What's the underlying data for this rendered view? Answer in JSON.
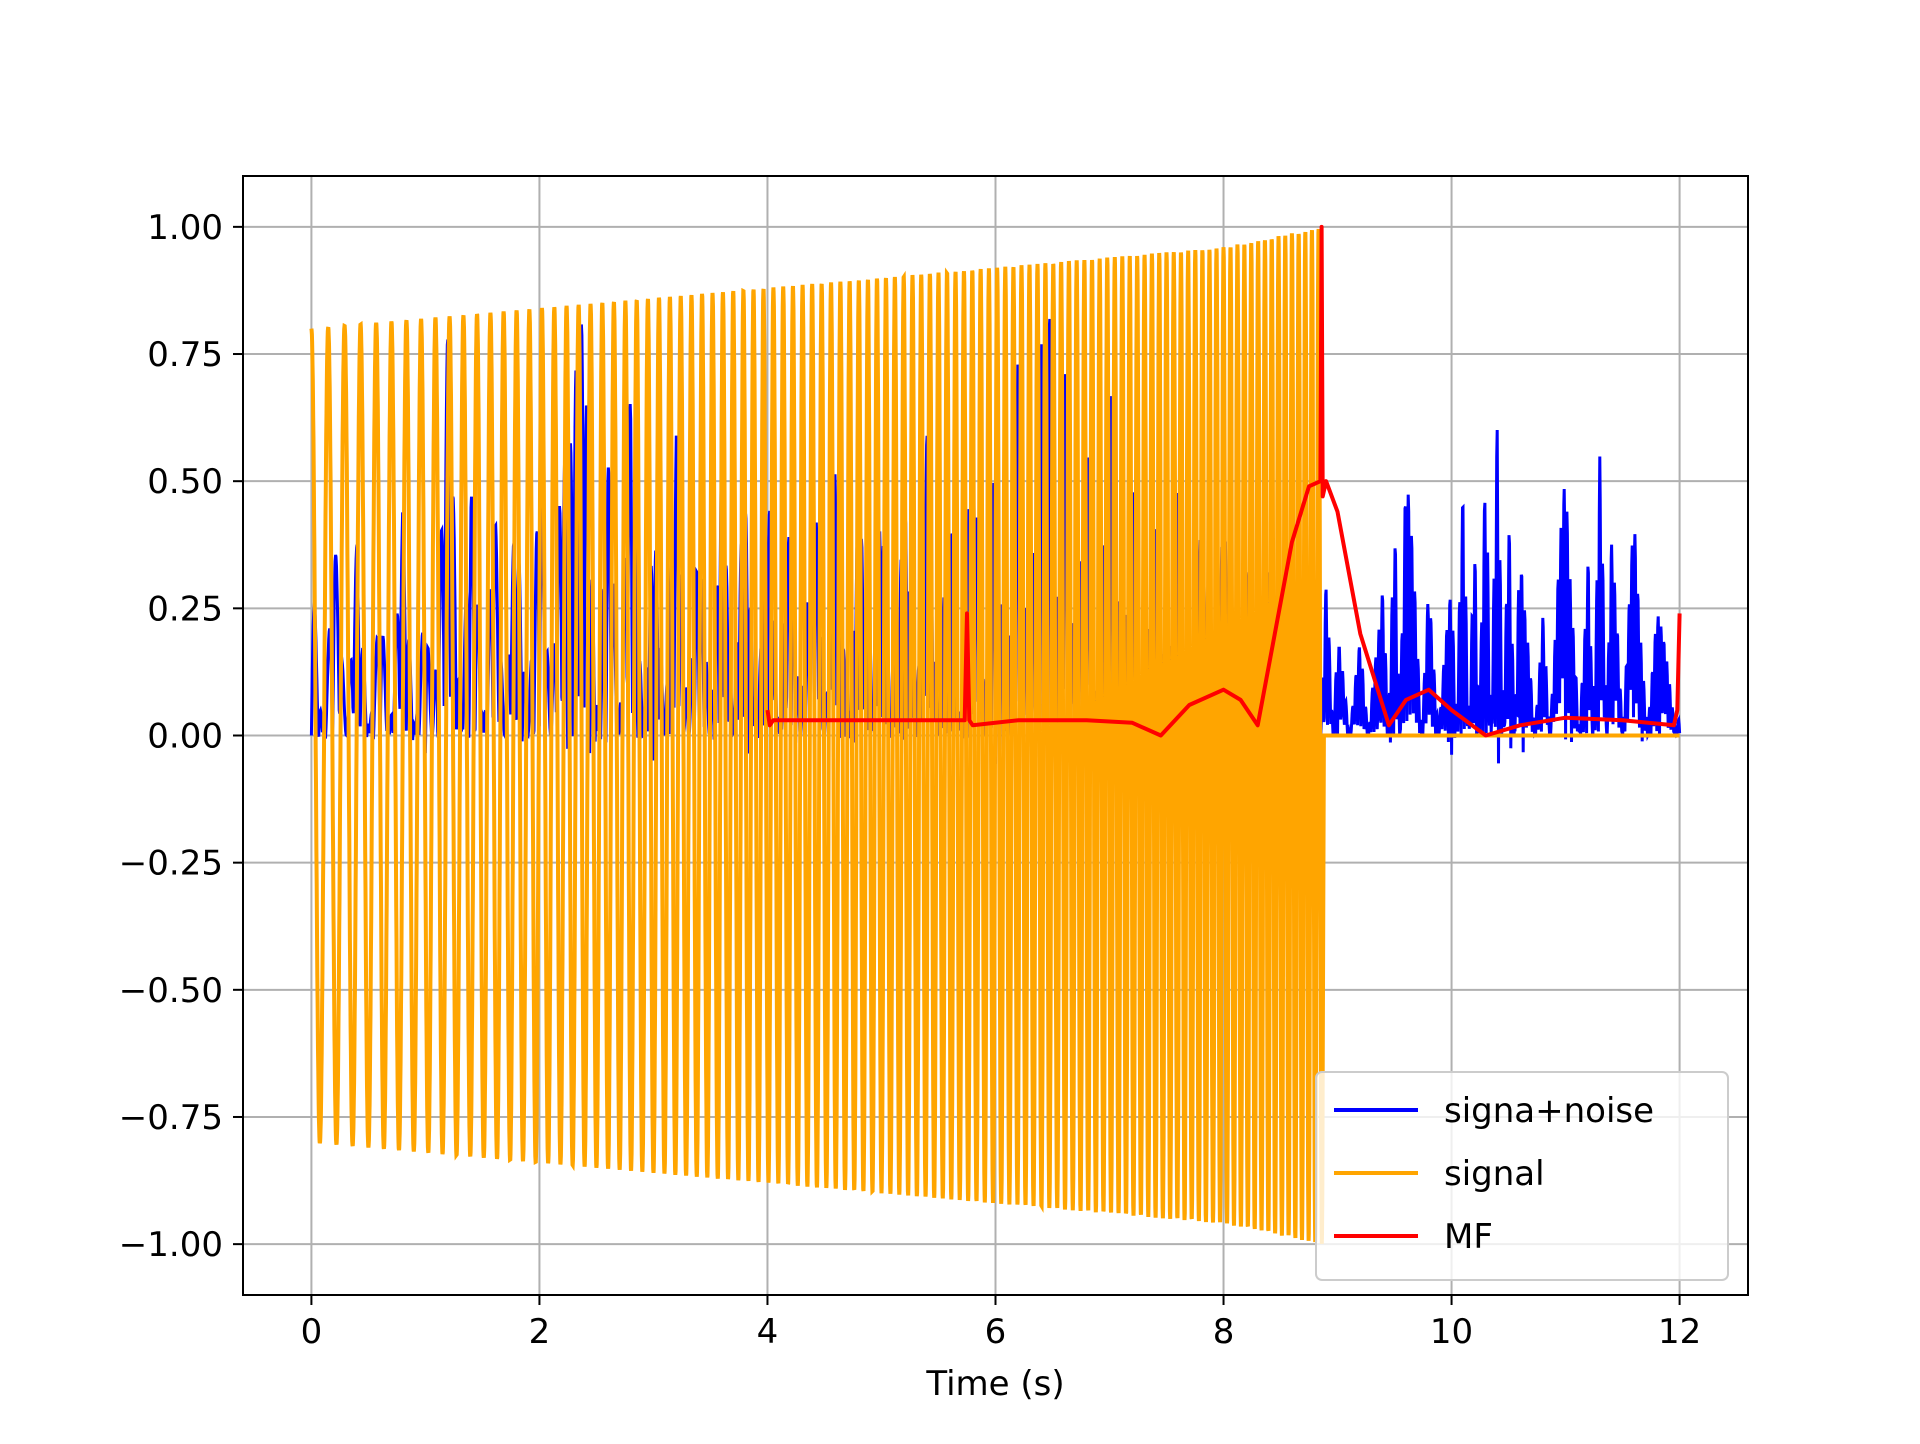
{
  "chart_data": {
    "type": "line",
    "title": "",
    "xlabel": "Time (s)",
    "ylabel": "",
    "xlim": [
      -0.6,
      12.6
    ],
    "ylim": [
      -1.1,
      1.1
    ],
    "x_ticks": [
      0,
      2,
      4,
      6,
      8,
      10,
      12
    ],
    "x_tick_labels": [
      "0",
      "2",
      "4",
      "6",
      "8",
      "10",
      "12"
    ],
    "y_ticks": [
      1.0,
      0.75,
      0.5,
      0.25,
      0.0,
      -0.25,
      -0.5,
      -0.75,
      -1.0
    ],
    "y_tick_labels": [
      "1.00",
      "0.75",
      "0.50",
      "0.25",
      "0.00",
      "−0.25",
      "−0.50",
      "−0.75",
      "−1.00"
    ],
    "grid": true,
    "legend_position": "lower-right",
    "series": [
      {
        "name": "signa+noise",
        "color": "#0000ff",
        "x": [
          0,
          0.2,
          0.4,
          0.6,
          0.8,
          1.0,
          1.2,
          1.4,
          1.6,
          1.8,
          2.0,
          2.2,
          2.4,
          2.6,
          2.8,
          3.0,
          3.2,
          3.4,
          3.6,
          3.8,
          4.0,
          4.2,
          4.4,
          4.6,
          4.8,
          5.0,
          5.2,
          5.4,
          5.6,
          5.8,
          6.0,
          6.2,
          6.4,
          6.5,
          6.6,
          6.8,
          7.0,
          7.2,
          7.4,
          7.6,
          7.8,
          8.0,
          8.2,
          8.4,
          8.6,
          8.8,
          8.9,
          9.0,
          9.2,
          9.4,
          9.5,
          9.6,
          9.8,
          10.0,
          10.1,
          10.2,
          10.3,
          10.4,
          10.5,
          10.6,
          10.8,
          11.0,
          11.2,
          11.3,
          11.4,
          11.6,
          11.8,
          12.0
        ],
        "y": [
          -0.43,
          0.45,
          -0.4,
          0.33,
          -0.45,
          0.35,
          -0.82,
          0.62,
          -0.5,
          0.55,
          -0.6,
          0.62,
          0.85,
          -0.65,
          0.7,
          -0.55,
          0.6,
          -0.5,
          0.57,
          -0.6,
          0.55,
          -0.5,
          0.6,
          -0.6,
          0.55,
          -0.5,
          0.58,
          -0.6,
          0.62,
          -0.7,
          0.7,
          -0.8,
          0.9,
          1.0,
          -0.85,
          0.75,
          -0.86,
          0.6,
          -0.55,
          0.5,
          -0.5,
          0.45,
          -0.4,
          0.4,
          -0.3,
          0.3,
          -0.34,
          0.22,
          -0.2,
          0.36,
          -0.52,
          0.65,
          -0.3,
          0.38,
          -0.6,
          0.5,
          -0.68,
          0.75,
          -0.55,
          0.45,
          -0.25,
          0.58,
          -0.4,
          0.63,
          -0.45,
          0.45,
          -0.3,
          0.05
        ]
      },
      {
        "name": "signal",
        "color": "#ffa500",
        "x": [
          0,
          2,
          4,
          6,
          8,
          8.87,
          8.88,
          12.0
        ],
        "y": [
          0.8,
          0.84,
          0.88,
          0.92,
          0.96,
          1.0,
          0.0,
          0.0
        ],
        "description_amplitude_envelope": "oscillates between +envelope and -envelope from 0 to 8.87 s, then 0"
      },
      {
        "name": "MF",
        "color": "#ff0000",
        "x": [
          4.0,
          4.02,
          4.05,
          4.5,
          5.0,
          5.5,
          5.73,
          5.75,
          5.77,
          5.8,
          6.2,
          6.8,
          7.2,
          7.45,
          7.7,
          8.0,
          8.15,
          8.3,
          8.45,
          8.6,
          8.75,
          8.85,
          8.86,
          8.87,
          8.9,
          9.0,
          9.2,
          9.45,
          9.6,
          9.8,
          10.0,
          10.3,
          10.6,
          11.0,
          11.5,
          11.95,
          11.98,
          12.0
        ],
        "y": [
          0.05,
          0.02,
          0.03,
          0.03,
          0.03,
          0.03,
          0.03,
          0.24,
          0.03,
          0.02,
          0.03,
          0.03,
          0.025,
          0.0,
          0.06,
          0.09,
          0.07,
          0.02,
          0.2,
          0.38,
          0.49,
          0.5,
          1.0,
          0.47,
          0.5,
          0.44,
          0.2,
          0.02,
          0.07,
          0.09,
          0.05,
          0.0,
          0.02,
          0.035,
          0.03,
          0.02,
          0.05,
          0.24
        ]
      }
    ]
  }
}
